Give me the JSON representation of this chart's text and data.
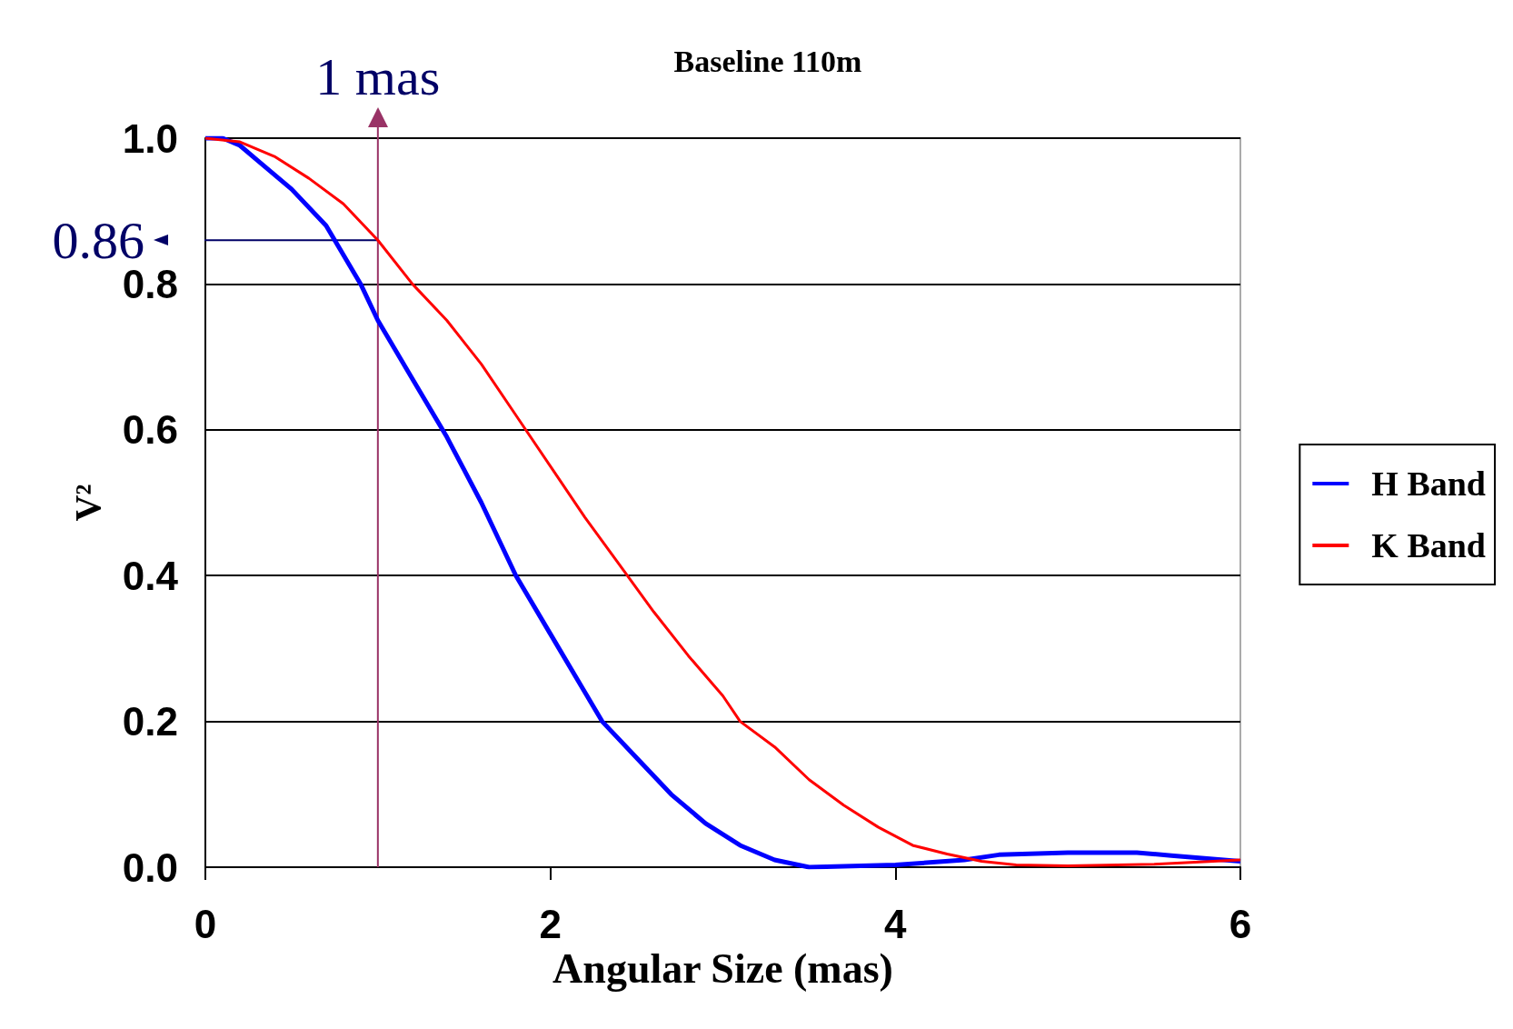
{
  "chart_data": {
    "type": "line",
    "title": "Baseline 110m",
    "xlabel": "Angular Size (mas)",
    "ylabel": "V²",
    "xlim": [
      0,
      6
    ],
    "xticks": [
      0,
      2,
      4,
      6
    ],
    "ylim": [
      0,
      1
    ],
    "yticks": [
      {
        "value": 0,
        "label": "0.0"
      },
      {
        "value": 0.2,
        "label": "0.2"
      },
      {
        "value": 0.4,
        "label": "0.4"
      },
      {
        "value": 0.6,
        "label": "0.6"
      },
      {
        "value": 0.8,
        "label": "0.8"
      },
      {
        "value": 1,
        "label": "1.0"
      }
    ],
    "grid": "y",
    "legend": "right",
    "marker": "none",
    "line_style": "solid",
    "series": [
      {
        "name": "H Band",
        "color": "#0000ff",
        "x": [
          0,
          0.1,
          0.2,
          0.3,
          0.5,
          0.7,
          0.9,
          1.0,
          1.2,
          1.4,
          1.6,
          1.8,
          2.0,
          2.2,
          2.3,
          2.5,
          2.7,
          2.9,
          3.1,
          3.3,
          3.5,
          4.0,
          4.4,
          4.6,
          5.0,
          5.4,
          5.6,
          6.0
        ],
        "values": [
          1,
          1,
          0.99,
          0.97,
          0.93,
          0.88,
          0.8,
          0.75,
          0.67,
          0.59,
          0.5,
          0.4,
          0.32,
          0.24,
          0.2,
          0.15,
          0.1,
          0.06,
          0.03,
          0.01,
          0,
          0.003,
          0.01,
          0.017,
          0.02,
          0.02,
          0.016,
          0.008
        ]
      },
      {
        "name": "K Band",
        "color": "#ff0000",
        "x": [
          0,
          0.2,
          0.4,
          0.6,
          0.8,
          1.0,
          1.2,
          1.4,
          1.6,
          1.8,
          2.0,
          2.2,
          2.4,
          2.6,
          2.8,
          3.0,
          3.1,
          3.3,
          3.5,
          3.7,
          3.9,
          4.1,
          4.3,
          4.5,
          4.7,
          5.0,
          5.5,
          6.0
        ],
        "values": [
          1,
          0.995,
          0.975,
          0.945,
          0.91,
          0.86,
          0.8,
          0.75,
          0.69,
          0.62,
          0.55,
          0.48,
          0.415,
          0.35,
          0.29,
          0.235,
          0.2,
          0.165,
          0.12,
          0.085,
          0.055,
          0.03,
          0.018,
          0.008,
          0.003,
          0.002,
          0.004,
          0.01
        ]
      }
    ],
    "ref_lines": [
      {
        "axis": "x",
        "value": 1,
        "label": "1 mas",
        "color": "#993366"
      },
      {
        "axis": "y",
        "value": 0.86,
        "label": "0.86",
        "color": "#000066"
      }
    ]
  }
}
